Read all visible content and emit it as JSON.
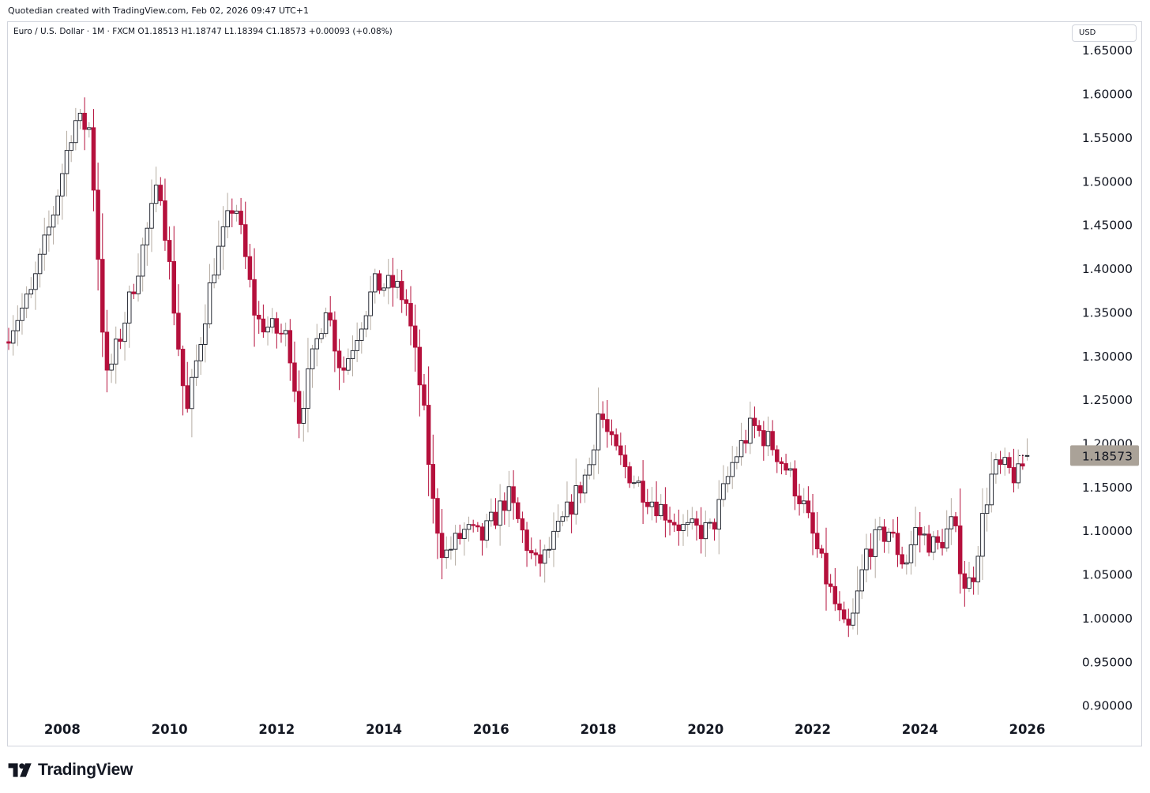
{
  "header": {
    "attribution": "Quotedian created with TradingView.com, Feb 02, 2026 09:47 UTC+1"
  },
  "symbol_line": "Euro / U.S. Dollar · 1M · FXCM  O1.18513  H1.18747  L1.18394  C1.18573  +0.00093 (+0.08%)",
  "currency_button": "USD",
  "brand": {
    "name": "TradingView"
  },
  "colors": {
    "up": "#b5aca2",
    "down": "#b5103c",
    "price_label_bg": "#aaa298",
    "text": "#131722",
    "border": "#d1d4dc"
  },
  "chart_data": {
    "type": "candlestick",
    "instrument": "Euro / U.S. Dollar",
    "interval": "1M",
    "source": "FXCM",
    "last_bar": {
      "open": 1.18513,
      "high": 1.18747,
      "low": 1.18394,
      "close": 1.18573,
      "change": 0.00093,
      "change_pct": 0.08
    },
    "last_price_label": "1.18573",
    "y_axis": {
      "side": "right",
      "range": [
        0.88,
        1.66
      ],
      "ticks": [
        "1.65000",
        "1.60000",
        "1.55000",
        "1.50000",
        "1.45000",
        "1.40000",
        "1.35000",
        "1.30000",
        "1.25000",
        "1.20000",
        "1.15000",
        "1.10000",
        "1.05000",
        "1.00000",
        "0.95000",
        "0.90000"
      ]
    },
    "x_axis": {
      "range": [
        2007.0,
        2026.17
      ],
      "ticks": [
        "2008",
        "2010",
        "2012",
        "2014",
        "2016",
        "2018",
        "2020",
        "2022",
        "2024",
        "2026"
      ]
    },
    "first_period": "2007-01",
    "close_path": [
      [
        2007.0,
        1.32
      ],
      [
        2007.5,
        1.37
      ],
      [
        2007.9,
        1.46
      ],
      [
        2008.3,
        1.57
      ],
      [
        2008.6,
        1.56
      ],
      [
        2008.9,
        1.27
      ],
      [
        2009.2,
        1.33
      ],
      [
        2009.9,
        1.5
      ],
      [
        2010.4,
        1.23
      ],
      [
        2010.9,
        1.4
      ],
      [
        2011.3,
        1.48
      ],
      [
        2011.7,
        1.34
      ],
      [
        2012.3,
        1.32
      ],
      [
        2012.5,
        1.23
      ],
      [
        2013.0,
        1.36
      ],
      [
        2013.3,
        1.28
      ],
      [
        2013.9,
        1.38
      ],
      [
        2014.3,
        1.38
      ],
      [
        2014.5,
        1.36
      ],
      [
        2014.8,
        1.25
      ],
      [
        2015.0,
        1.13
      ],
      [
        2015.2,
        1.07
      ],
      [
        2015.6,
        1.1
      ],
      [
        2015.9,
        1.09
      ],
      [
        2016.4,
        1.14
      ],
      [
        2016.9,
        1.06
      ],
      [
        2017.1,
        1.07
      ],
      [
        2017.9,
        1.17
      ],
      [
        2018.1,
        1.24
      ],
      [
        2018.3,
        1.2
      ],
      [
        2018.6,
        1.17
      ],
      [
        2019.0,
        1.14
      ],
      [
        2019.7,
        1.1
      ],
      [
        2020.2,
        1.1
      ],
      [
        2020.6,
        1.18
      ],
      [
        2020.95,
        1.22
      ],
      [
        2021.3,
        1.2
      ],
      [
        2021.6,
        1.17
      ],
      [
        2021.9,
        1.13
      ],
      [
        2022.3,
        1.05
      ],
      [
        2022.7,
        0.98
      ],
      [
        2022.8,
        0.99
      ],
      [
        2023.1,
        1.08
      ],
      [
        2023.5,
        1.1
      ],
      [
        2023.8,
        1.06
      ],
      [
        2024.0,
        1.1
      ],
      [
        2024.4,
        1.08
      ],
      [
        2024.7,
        1.11
      ],
      [
        2024.9,
        1.04
      ],
      [
        2025.05,
        1.04
      ],
      [
        2025.3,
        1.13
      ],
      [
        2025.45,
        1.17
      ],
      [
        2025.7,
        1.17
      ],
      [
        2025.9,
        1.16
      ],
      [
        2026.08,
        1.1857
      ]
    ]
  }
}
